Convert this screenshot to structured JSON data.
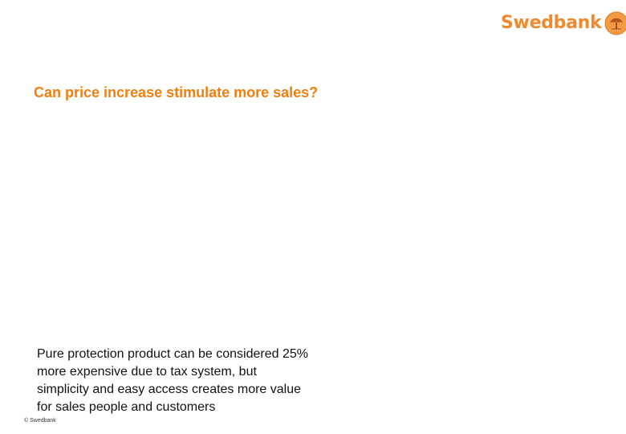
{
  "brand": {
    "name": "Swedbank",
    "icon": "swedbank-oak-tree-icon",
    "color": "#f08a2e"
  },
  "slide": {
    "title": "Can price increase stimulate more sales?",
    "title_color": "#f07f0f",
    "body_lines": [
      "Pure protection product can be considered 25%",
      "more expensive due to tax system, but",
      "simplicity and easy access creates more value",
      "for sales people and customers"
    ]
  },
  "footer": {
    "copyright": "© Swedbank"
  }
}
